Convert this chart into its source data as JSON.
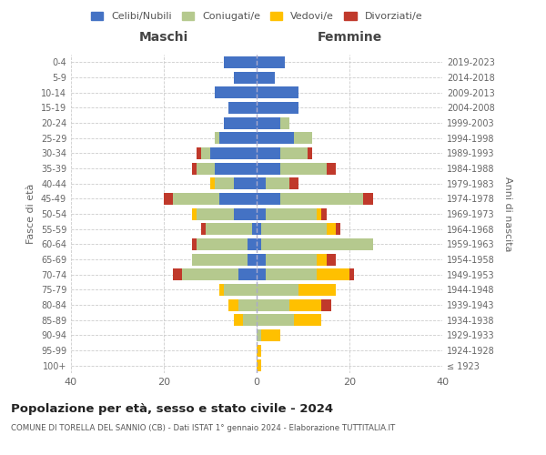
{
  "age_groups": [
    "100+",
    "95-99",
    "90-94",
    "85-89",
    "80-84",
    "75-79",
    "70-74",
    "65-69",
    "60-64",
    "55-59",
    "50-54",
    "45-49",
    "40-44",
    "35-39",
    "30-34",
    "25-29",
    "20-24",
    "15-19",
    "10-14",
    "5-9",
    "0-4"
  ],
  "birth_years": [
    "≤ 1923",
    "1924-1928",
    "1929-1933",
    "1934-1938",
    "1939-1943",
    "1944-1948",
    "1949-1953",
    "1954-1958",
    "1959-1963",
    "1964-1968",
    "1969-1973",
    "1974-1978",
    "1979-1983",
    "1984-1988",
    "1989-1993",
    "1994-1998",
    "1999-2003",
    "2004-2008",
    "2009-2013",
    "2014-2018",
    "2019-2023"
  ],
  "maschi": {
    "celibi": [
      0,
      0,
      0,
      0,
      0,
      0,
      4,
      2,
      2,
      1,
      5,
      8,
      5,
      9,
      10,
      8,
      7,
      6,
      9,
      5,
      7
    ],
    "coniugati": [
      0,
      0,
      0,
      3,
      4,
      7,
      12,
      12,
      11,
      10,
      8,
      10,
      4,
      4,
      2,
      1,
      0,
      0,
      0,
      0,
      0
    ],
    "vedovi": [
      0,
      0,
      0,
      2,
      2,
      1,
      0,
      0,
      0,
      0,
      1,
      0,
      1,
      0,
      0,
      0,
      0,
      0,
      0,
      0,
      0
    ],
    "divorziati": [
      0,
      0,
      0,
      0,
      0,
      0,
      2,
      0,
      1,
      1,
      0,
      2,
      0,
      1,
      1,
      0,
      0,
      0,
      0,
      0,
      0
    ]
  },
  "femmine": {
    "nubili": [
      0,
      0,
      0,
      0,
      0,
      0,
      2,
      2,
      1,
      1,
      2,
      5,
      2,
      5,
      5,
      8,
      5,
      9,
      9,
      4,
      6
    ],
    "coniugate": [
      0,
      0,
      1,
      8,
      7,
      9,
      11,
      11,
      24,
      14,
      11,
      18,
      5,
      10,
      6,
      4,
      2,
      0,
      0,
      0,
      0
    ],
    "vedove": [
      1,
      1,
      4,
      6,
      7,
      8,
      7,
      2,
      0,
      2,
      1,
      0,
      0,
      0,
      0,
      0,
      0,
      0,
      0,
      0,
      0
    ],
    "divorziate": [
      0,
      0,
      0,
      0,
      2,
      0,
      1,
      2,
      0,
      1,
      1,
      2,
      2,
      2,
      1,
      0,
      0,
      0,
      0,
      0,
      0
    ]
  },
  "color_celibi": "#4472c4",
  "color_coniugati": "#b5c98e",
  "color_vedovi": "#ffc000",
  "color_divorziati": "#c0392b",
  "xlim": 40,
  "title": "Popolazione per età, sesso e stato civile - 2024",
  "subtitle": "COMUNE DI TORELLA DEL SANNIO (CB) - Dati ISTAT 1° gennaio 2024 - Elaborazione TUTTITALIA.IT",
  "xlabel_left": "Maschi",
  "xlabel_right": "Femmine",
  "ylabel_left": "Fasce di età",
  "ylabel_right": "Anni di nascita"
}
